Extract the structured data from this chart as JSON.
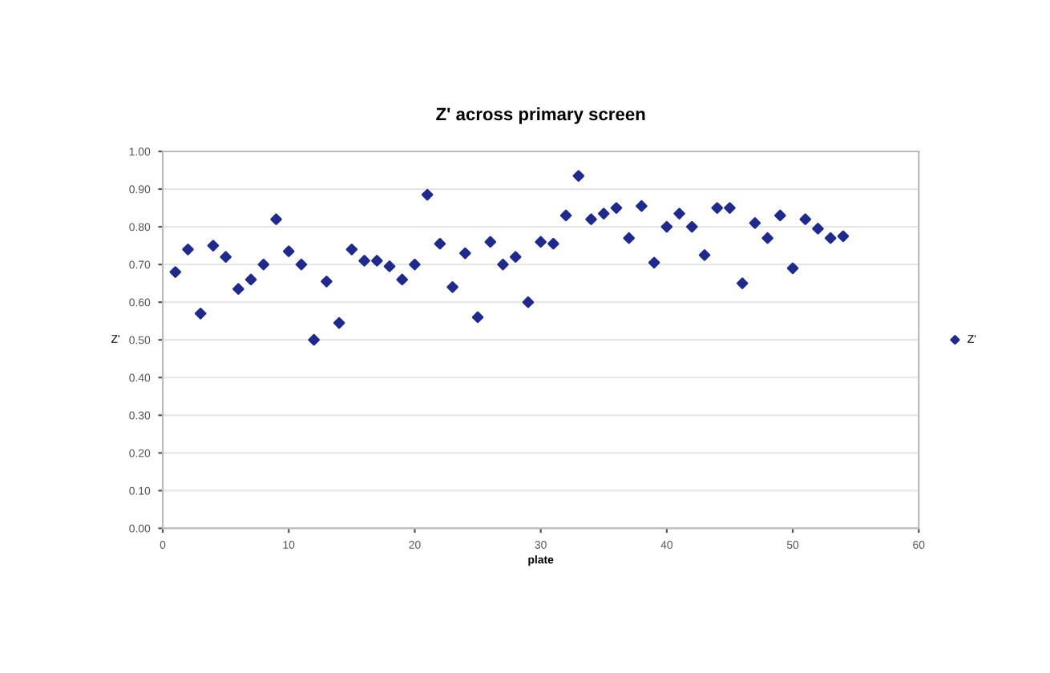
{
  "chart_data": {
    "type": "scatter",
    "title": "Z' across primary screen",
    "xlabel": "plate",
    "ylabel": "Z'",
    "x": [
      1,
      2,
      3,
      4,
      5,
      6,
      7,
      8,
      9,
      10,
      11,
      12,
      13,
      14,
      15,
      16,
      17,
      18,
      19,
      20,
      21,
      22,
      23,
      24,
      25,
      26,
      27,
      28,
      29,
      30,
      31,
      32,
      33,
      34,
      35,
      36,
      37,
      38,
      39,
      40,
      41,
      42,
      43,
      44,
      45,
      46,
      47,
      48,
      49,
      50,
      51,
      52,
      53,
      54
    ],
    "series": [
      {
        "name": "Z'",
        "color": "#1f2a8c",
        "values": [
          0.68,
          0.74,
          0.57,
          0.75,
          0.72,
          0.635,
          0.66,
          0.7,
          0.82,
          0.735,
          0.7,
          0.5,
          0.655,
          0.545,
          0.74,
          0.71,
          0.71,
          0.695,
          0.66,
          0.7,
          0.885,
          0.755,
          0.64,
          0.73,
          0.56,
          0.76,
          0.7,
          0.72,
          0.6,
          0.76,
          0.755,
          0.83,
          0.935,
          0.82,
          0.835,
          0.85,
          0.77,
          0.855,
          0.705,
          0.8,
          0.835,
          0.8,
          0.725,
          0.85,
          0.85,
          0.65,
          0.81,
          0.77,
          0.83,
          0.69,
          0.82,
          0.795,
          0.77,
          0.775
        ]
      }
    ],
    "xlim": [
      0,
      60
    ],
    "xticks": [
      0,
      10,
      20,
      30,
      40,
      50,
      60
    ],
    "ylim": [
      0,
      1
    ],
    "yticks": [
      {
        "value": 0,
        "label": "0.00"
      },
      {
        "value": 0.1,
        "label": "0.10"
      },
      {
        "value": 0.2,
        "label": "0.20"
      },
      {
        "value": 0.3,
        "label": "0.30"
      },
      {
        "value": 0.4,
        "label": "0.40"
      },
      {
        "value": 0.5,
        "label": "0.50"
      },
      {
        "value": 0.6,
        "label": "0.60"
      },
      {
        "value": 0.7,
        "label": "0.70"
      },
      {
        "value": 0.8,
        "label": "0.80"
      },
      {
        "value": 0.9,
        "label": "0.90"
      },
      {
        "value": 1,
        "label": "1.00"
      }
    ],
    "grid": "y",
    "legend": "right",
    "marker": "diamond"
  }
}
